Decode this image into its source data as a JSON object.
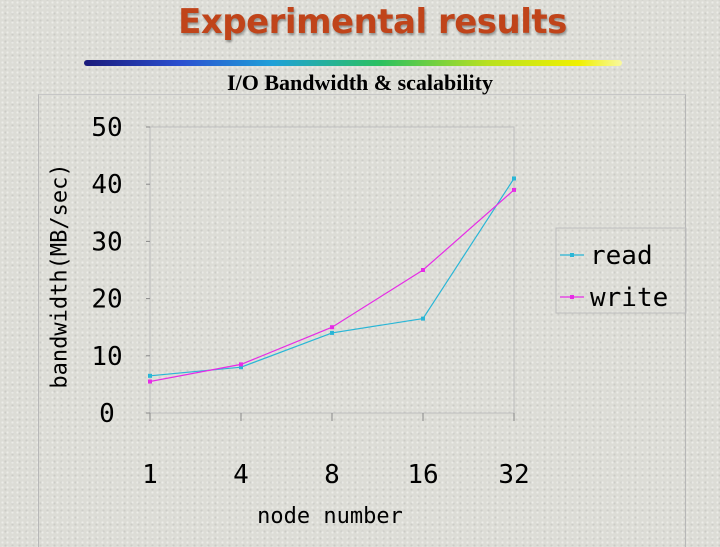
{
  "slide": {
    "title": "Experimental results"
  },
  "chart_data": {
    "type": "line",
    "title": "I/O Bandwidth & scalability",
    "xlabel": "node number",
    "ylabel": "bandwidth(MB/sec)",
    "categories": [
      "1",
      "4",
      "8",
      "16",
      "32"
    ],
    "ylim": [
      0,
      50
    ],
    "yticks": [
      0,
      10,
      20,
      30,
      40,
      50
    ],
    "grid": false,
    "legend_position": "right",
    "series": [
      {
        "name": "read",
        "color": "#2ab6d6",
        "values": [
          6.5,
          8,
          14,
          16.5,
          41
        ]
      },
      {
        "name": "write",
        "color": "#e62ce6",
        "values": [
          5.5,
          8.5,
          15,
          25,
          39
        ]
      }
    ]
  }
}
